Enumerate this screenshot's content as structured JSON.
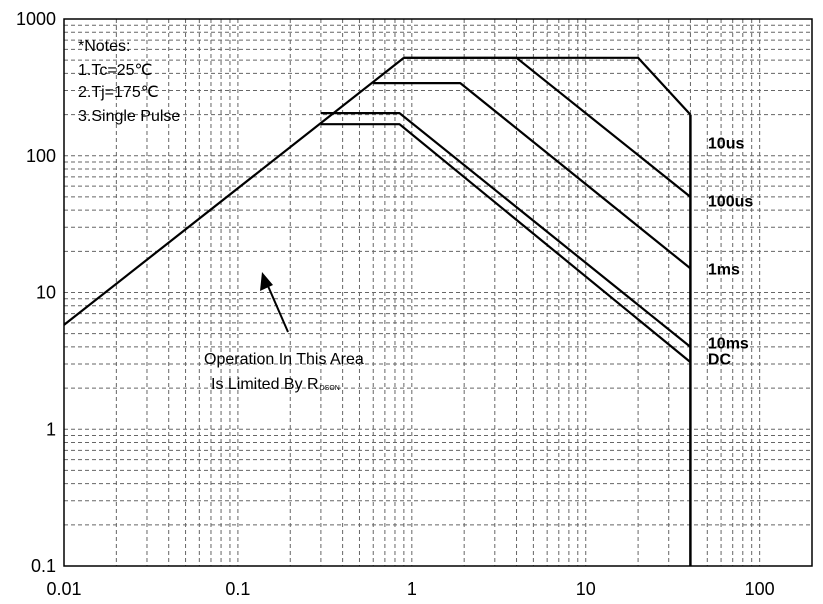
{
  "chart_data": {
    "type": "line",
    "title": "",
    "xlabel": "",
    "ylabel": "",
    "x_scale": "log",
    "y_scale": "log",
    "xlim": [
      0.01,
      200
    ],
    "ylim": [
      0.1,
      1000
    ],
    "grid": true,
    "x_ticks": [
      {
        "value": 0.01,
        "label": "0.01"
      },
      {
        "value": 0.1,
        "label": "0.1"
      },
      {
        "value": 1,
        "label": "1"
      },
      {
        "value": 10,
        "label": "10"
      },
      {
        "value": 100,
        "label": "100"
      }
    ],
    "y_ticks": [
      {
        "value": 0.1,
        "label": "0.1"
      },
      {
        "value": 1,
        "label": "1"
      },
      {
        "value": 10,
        "label": "10"
      },
      {
        "value": 100,
        "label": "100"
      },
      {
        "value": 1000,
        "label": "1000"
      }
    ],
    "notes": [
      "*Notes:",
      "1.Tc=25℃",
      "2.Tj=175℃",
      "3.Single Pulse"
    ],
    "annotation": {
      "line1": "Operation In This Area",
      "line2_prefix": "Is Limited By R",
      "line2_sub": "DSON"
    },
    "rdson_limit": [
      [
        0.01,
        5.8
      ],
      [
        0.9,
        520
      ]
    ],
    "vds_limit": [
      [
        40,
        200
      ],
      [
        40,
        0.1
      ]
    ],
    "series": [
      {
        "name": "10us",
        "label_at": [
          43,
          125
        ],
        "points": [
          [
            0.9,
            520
          ],
          [
            20,
            520
          ],
          [
            40,
            200
          ]
        ]
      },
      {
        "name": "100us",
        "label_at": [
          43,
          47
        ],
        "points": [
          [
            0.9,
            520
          ],
          [
            4,
            520
          ],
          [
            40,
            50
          ]
        ]
      },
      {
        "name": "1ms",
        "label_at": [
          43,
          15
        ],
        "points": [
          [
            0.6,
            340
          ],
          [
            1.9,
            340
          ],
          [
            40,
            15
          ]
        ]
      },
      {
        "name": "10ms",
        "label_at": [
          43,
          4.3
        ],
        "points": [
          [
            0.3,
            205
          ],
          [
            0.85,
            205
          ],
          [
            40,
            4
          ]
        ]
      },
      {
        "name": "DC",
        "label_at": [
          43,
          3.3
        ],
        "points": [
          [
            0.3,
            170
          ],
          [
            0.85,
            170
          ],
          [
            40,
            3.1
          ]
        ]
      }
    ]
  }
}
